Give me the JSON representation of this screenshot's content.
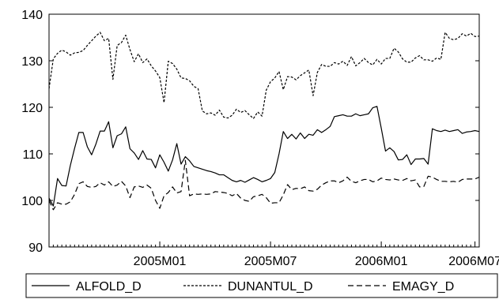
{
  "chart_data": {
    "type": "line",
    "title": "",
    "xlabel": "",
    "ylabel": "",
    "ylim": [
      90,
      140
    ],
    "yticks": [
      90,
      100,
      110,
      120,
      130,
      140
    ],
    "x_start_index": 0,
    "x_end_index": 101,
    "xticks": [
      {
        "label": "2005M01",
        "index": 26
      },
      {
        "label": "2005M07",
        "index": 52
      },
      {
        "label": "2006M01",
        "index": 78
      },
      {
        "label": "2006M07",
        "index": 100
      }
    ],
    "grid": false,
    "legend_position": "bottom",
    "series": [
      {
        "name": "ALFOLD_D",
        "style": "solid",
        "values": [
          100.5,
          98.8,
          104.7,
          103.2,
          103.1,
          107.5,
          111.2,
          114.6,
          114.6,
          111.5,
          109.8,
          112.1,
          114.9,
          114.9,
          116.9,
          111.3,
          113.9,
          114.3,
          115.8,
          111.1,
          110.2,
          108.8,
          110.7,
          108.9,
          108.8,
          107.0,
          109.8,
          108.2,
          106.3,
          108.7,
          112.2,
          107.8,
          109.4,
          108.5,
          107.3,
          107.0,
          106.7,
          106.4,
          106.2,
          105.9,
          105.5,
          105.5,
          104.9,
          104.3,
          104.0,
          104.3,
          103.9,
          104.4,
          104.9,
          104.5,
          104.0,
          104.3,
          104.7,
          106.0,
          110.0,
          114.8,
          113.3,
          114.2,
          113.2,
          114.5,
          113.3,
          114.2,
          114.0,
          115.2,
          114.6,
          115.2,
          115.9,
          118.0,
          118.2,
          118.4,
          118.1,
          118.1,
          118.6,
          118.2,
          118.4,
          118.6,
          119.9,
          120.2,
          115.5,
          110.6,
          111.3,
          110.5,
          108.7,
          108.8,
          109.8,
          107.7,
          108.9,
          108.9,
          109.0,
          107.8,
          115.4,
          115.0,
          114.8,
          115.1,
          114.8,
          115.0,
          115.2,
          114.4,
          114.7,
          114.8,
          115.0,
          114.8
        ]
      },
      {
        "name": "DUNANTUL_D",
        "style": "dotted",
        "values": [
          124.0,
          130.4,
          131.6,
          132.3,
          131.9,
          131.2,
          131.7,
          131.8,
          132.2,
          133.3,
          134.3,
          135.3,
          136.1,
          134.3,
          134.8,
          126.0,
          133.3,
          133.9,
          135.5,
          132.4,
          129.8,
          131.5,
          129.6,
          130.4,
          128.9,
          127.8,
          126.4,
          121.0,
          129.9,
          129.4,
          128.2,
          126.3,
          126.2,
          125.7,
          124.5,
          124.0,
          119.2,
          118.6,
          118.8,
          118.3,
          119.4,
          117.9,
          117.7,
          118.3,
          119.6,
          118.9,
          119.3,
          118.4,
          117.6,
          119.0,
          118.1,
          123.7,
          125.5,
          126.3,
          127.7,
          123.8,
          126.6,
          126.5,
          125.9,
          126.8,
          127.4,
          128.0,
          122.5,
          127.5,
          129.2,
          128.8,
          128.8,
          129.6,
          129.3,
          129.9,
          129.0,
          130.9,
          128.9,
          129.6,
          130.5,
          129.6,
          129.1,
          130.3,
          129.3,
          130.5,
          130.5,
          132.7,
          131.9,
          130.4,
          129.7,
          129.7,
          130.6,
          131.1,
          130.2,
          130.2,
          129.9,
          130.6,
          130.3,
          136.1,
          134.8,
          134.5,
          134.8,
          135.8,
          135.3,
          135.9,
          135.2,
          135.3
        ]
      },
      {
        "name": "EMAGY_D",
        "style": "dashed",
        "values": [
          100.0,
          98.0,
          99.5,
          99.2,
          99.2,
          99.7,
          101.3,
          103.6,
          104.0,
          103.0,
          102.8,
          103.0,
          103.8,
          103.3,
          104.0,
          103.0,
          103.3,
          104.1,
          103.1,
          100.6,
          102.9,
          103.1,
          102.8,
          103.3,
          102.6,
          100.0,
          98.3,
          101.0,
          101.7,
          102.9,
          101.6,
          101.9,
          108.6,
          101.0,
          101.4,
          101.3,
          101.4,
          101.3,
          101.4,
          101.9,
          101.8,
          101.7,
          101.5,
          101.0,
          101.5,
          100.5,
          100.0,
          99.8,
          100.8,
          101.0,
          101.3,
          100.6,
          99.4,
          99.5,
          99.5,
          101.2,
          103.4,
          102.3,
          102.6,
          102.5,
          102.9,
          102.1,
          102.0,
          102.4,
          103.3,
          103.8,
          104.2,
          104.2,
          103.8,
          104.2,
          105.0,
          104.1,
          103.8,
          104.2,
          104.5,
          104.5,
          104.0,
          104.2,
          104.8,
          104.5,
          104.4,
          104.6,
          104.4,
          104.3,
          104.7,
          104.2,
          104.4,
          102.9,
          103.0,
          105.2,
          105.0,
          104.5,
          104.1,
          104.1,
          104.0,
          104.1,
          103.9,
          104.5,
          104.6,
          104.6,
          104.6,
          105.0
        ]
      }
    ]
  }
}
